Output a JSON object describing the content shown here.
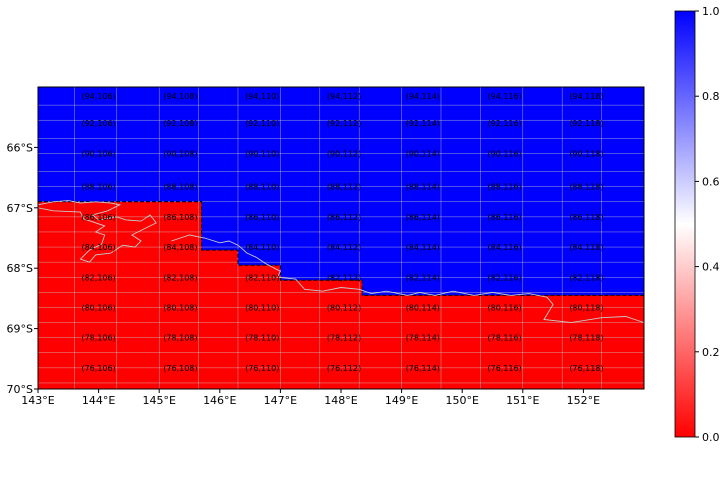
{
  "chart_data": {
    "type": "heatmap",
    "projection": "PlateCarree",
    "xlim": [
      143,
      153
    ],
    "ylim": [
      -70,
      -65
    ],
    "x_ticks": [
      {
        "value": 143,
        "label": "143°E"
      },
      {
        "value": 144,
        "label": "144°E"
      },
      {
        "value": 145,
        "label": "145°E"
      },
      {
        "value": 146,
        "label": "146°E"
      },
      {
        "value": 147,
        "label": "147°E"
      },
      {
        "value": 148,
        "label": "148°E"
      },
      {
        "value": 149,
        "label": "149°E"
      },
      {
        "value": 150,
        "label": "150°E"
      },
      {
        "value": 151,
        "label": "151°E"
      },
      {
        "value": 152,
        "label": "152°E"
      }
    ],
    "y_ticks": [
      {
        "value": -66,
        "label": "66°S"
      },
      {
        "value": -67,
        "label": "67°S"
      },
      {
        "value": -68,
        "label": "68°S"
      },
      {
        "value": -69,
        "label": "69°S"
      },
      {
        "value": -70,
        "label": "70°S"
      }
    ],
    "colorbar": {
      "min": 0,
      "max": 1,
      "colormap": "bwr_r",
      "low_color": "#ff0000",
      "mid_color": "#ffffff",
      "high_color": "#0000ff",
      "ticks": [
        {
          "value": 0.0,
          "label": "0.0"
        },
        {
          "value": 0.2,
          "label": "0.2"
        },
        {
          "value": 0.4,
          "label": "0.4"
        },
        {
          "value": 0.6,
          "label": "0.6"
        },
        {
          "value": 0.8,
          "label": "0.8"
        },
        {
          "value": 1.0,
          "label": "1.0"
        }
      ]
    },
    "grid_columns": [
      106,
      108,
      110,
      112,
      114,
      116,
      118
    ],
    "grid_label_rows": [
      {
        "row": 94,
        "lat": -65.15,
        "labels": [
          "(94,106)",
          "(94,108)",
          "(94,110)",
          "(94,112)",
          "(94,114)",
          "(94,116)",
          "(94,118)"
        ]
      },
      {
        "row": 92,
        "lat": -65.6,
        "labels": [
          "(92,106)",
          "(92,108)",
          "(92,110)",
          "(92,112)",
          "(92,114)",
          "(92,116)",
          "(92,118)"
        ]
      },
      {
        "row": 90,
        "lat": -66.1,
        "labels": [
          "(90,106)",
          "(90,108)",
          "(90,110)",
          "(90,112)",
          "(90,114)",
          "(90,116)",
          "(90,118)"
        ]
      },
      {
        "row": 88,
        "lat": -66.65,
        "labels": [
          "(88,106)",
          "(88,108)",
          "(88,110)",
          "(88,112)",
          "(88,114)",
          "(88,116)",
          "(88,118)"
        ]
      },
      {
        "row": 86,
        "lat": -67.15,
        "labels": [
          "(86,106)",
          "(86,108)",
          "(86,110)",
          "(86,112)",
          "(86,114)",
          "(86,116)",
          "(86,118)"
        ]
      },
      {
        "row": 84,
        "lat": -67.65,
        "labels": [
          "(84,106)",
          "(84,108)",
          "(84,110)",
          "(84,112)",
          "(84,114)",
          "(84,116)",
          "(84,118)"
        ]
      },
      {
        "row": 82,
        "lat": -68.15,
        "labels": [
          "(82,106)",
          "(82,108)",
          "(82,110)",
          "(82,112)",
          "(82,114)",
          "(82,116)",
          "(82,118)"
        ]
      },
      {
        "row": 80,
        "lat": -68.65,
        "labels": [
          "(80,106)",
          "(80,108)",
          "(80,110)",
          "(80,112)",
          "(80,114)",
          "(80,116)",
          "(80,118)"
        ]
      },
      {
        "row": 78,
        "lat": -69.15,
        "labels": [
          "(78,106)",
          "(78,108)",
          "(78,110)",
          "(78,112)",
          "(78,114)",
          "(78,116)",
          "(78,118)"
        ]
      },
      {
        "row": 76,
        "lat": -69.65,
        "labels": [
          "(76,106)",
          "(76,108)",
          "(76,110)",
          "(76,112)",
          "(76,114)",
          "(76,116)",
          "(76,118)"
        ]
      }
    ],
    "label_lons": [
      144.0,
      145.35,
      146.7,
      148.05,
      149.35,
      150.7,
      152.05
    ],
    "grid_lines": {
      "lons": [
        143.0,
        143.6,
        144.3,
        145.0,
        145.65,
        146.3,
        147.0,
        147.65,
        148.3,
        149.0,
        149.65,
        150.3,
        151.0,
        151.65,
        152.3,
        153.0
      ],
      "lats": [
        -65.0,
        -65.3,
        -65.55,
        -65.85,
        -66.1,
        -66.4,
        -66.65,
        -66.9,
        -67.15,
        -67.4,
        -67.65,
        -67.9,
        -68.15,
        -68.4,
        -68.65,
        -68.9,
        -69.15,
        -69.4,
        -69.65,
        -69.9,
        -70.0
      ]
    },
    "boundary_0_to_1": [
      [
        143.0,
        -66.9
      ],
      [
        145.7,
        -66.9
      ],
      [
        145.7,
        -67.7
      ],
      [
        146.3,
        -67.7
      ],
      [
        146.3,
        -67.95
      ],
      [
        147.0,
        -67.95
      ],
      [
        147.0,
        -68.2
      ],
      [
        148.35,
        -68.2
      ],
      [
        148.35,
        -68.45
      ],
      [
        153.0,
        -68.45
      ],
      [
        153.0,
        -70.0
      ],
      [
        143.0,
        -70.0
      ]
    ],
    "coastline": [
      [
        143.0,
        -66.95
      ],
      [
        143.25,
        -66.9
      ],
      [
        143.5,
        -66.88
      ],
      [
        143.7,
        -66.92
      ],
      [
        143.95,
        -66.9
      ],
      [
        144.2,
        -66.92
      ],
      [
        144.35,
        -66.95
      ],
      [
        144.15,
        -67.05
      ],
      [
        143.9,
        -67.12
      ],
      [
        144.0,
        -67.2
      ],
      [
        144.3,
        -67.15
      ],
      [
        144.45,
        -67.2
      ],
      [
        144.7,
        -67.22
      ],
      [
        144.85,
        -67.12
      ],
      [
        144.95,
        -67.25
      ],
      [
        144.75,
        -67.35
      ],
      [
        144.55,
        -67.45
      ],
      [
        144.7,
        -67.55
      ],
      [
        144.6,
        -67.65
      ],
      [
        144.4,
        -67.62
      ],
      [
        144.2,
        -67.75
      ],
      [
        143.95,
        -67.78
      ],
      [
        143.85,
        -67.9
      ],
      [
        143.7,
        -67.85
      ],
      [
        143.85,
        -67.7
      ],
      [
        144.05,
        -67.6
      ],
      [
        144.1,
        -67.45
      ],
      [
        143.95,
        -67.4
      ],
      [
        144.1,
        -67.3
      ],
      [
        143.75,
        -67.18
      ],
      [
        143.7,
        -67.07
      ],
      [
        143.25,
        -67.05
      ],
      [
        143.0,
        -67.0
      ]
    ],
    "coastline_2": [
      [
        145.2,
        -67.55
      ],
      [
        145.5,
        -67.45
      ],
      [
        145.75,
        -67.5
      ],
      [
        146.0,
        -67.58
      ],
      [
        146.15,
        -67.55
      ],
      [
        146.3,
        -67.62
      ],
      [
        146.45,
        -67.75
      ],
      [
        146.6,
        -67.82
      ],
      [
        146.75,
        -67.92
      ],
      [
        146.9,
        -68.0
      ],
      [
        147.0,
        -68.05
      ],
      [
        146.95,
        -68.15
      ],
      [
        147.25,
        -68.18
      ],
      [
        147.4,
        -68.35
      ],
      [
        147.7,
        -68.38
      ],
      [
        148.0,
        -68.32
      ],
      [
        148.3,
        -68.35
      ],
      [
        148.5,
        -68.42
      ],
      [
        148.75,
        -68.38
      ],
      [
        149.1,
        -68.45
      ],
      [
        149.3,
        -68.4
      ],
      [
        149.55,
        -68.45
      ],
      [
        149.85,
        -68.38
      ],
      [
        150.2,
        -68.45
      ],
      [
        150.5,
        -68.4
      ],
      [
        150.8,
        -68.45
      ],
      [
        151.1,
        -68.42
      ],
      [
        151.4,
        -68.48
      ],
      [
        151.5,
        -68.6
      ],
      [
        151.35,
        -68.85
      ],
      [
        151.8,
        -68.9
      ],
      [
        152.3,
        -68.82
      ],
      [
        152.7,
        -68.8
      ],
      [
        153.0,
        -68.9
      ]
    ]
  }
}
